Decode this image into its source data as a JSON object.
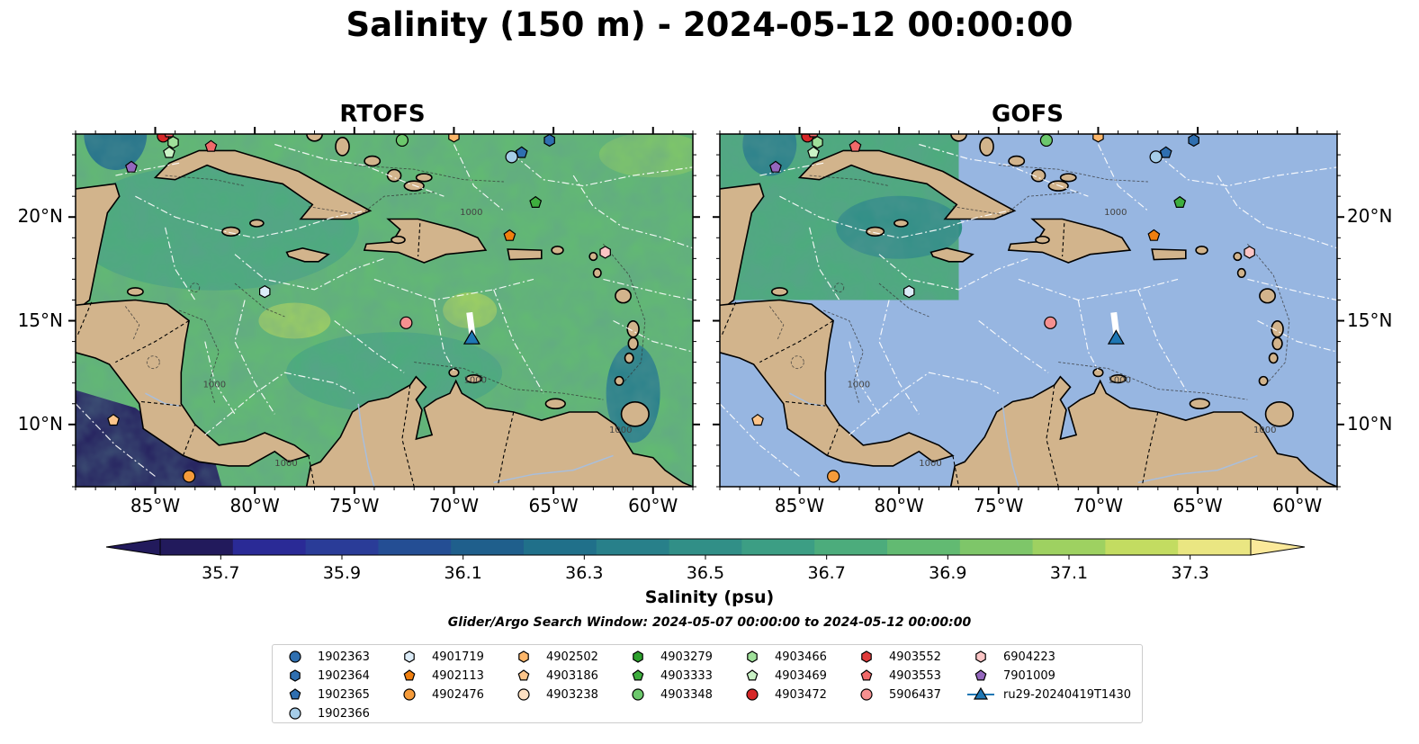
{
  "title": "Salinity (150 m) - 2024-05-12 00:00:00",
  "panels": [
    {
      "title": "RTOFS",
      "coverage": "full"
    },
    {
      "title": "GOFS",
      "coverage": "partial"
    }
  ],
  "map": {
    "lon_range": [
      -89.0,
      -58.0
    ],
    "lat_range": [
      7.0,
      24.0
    ],
    "lon_ticks": [
      {
        "value": -85,
        "label": "85°W"
      },
      {
        "value": -80,
        "label": "80°W"
      },
      {
        "value": -75,
        "label": "75°W"
      },
      {
        "value": -70,
        "label": "70°W"
      },
      {
        "value": -65,
        "label": "65°W"
      },
      {
        "value": -60,
        "label": "60°W"
      }
    ],
    "lat_ticks": [
      {
        "value": 20,
        "label": "20°N"
      },
      {
        "value": 15,
        "label": "15°N"
      },
      {
        "value": 10,
        "label": "10°N"
      }
    ],
    "contour_label": "1000",
    "colors": {
      "land": "#d2b48c",
      "ocean": "#97b6e1",
      "rivers": "#a9bedb",
      "border": "#000000"
    }
  },
  "colorbar": {
    "label": "Salinity (psu)",
    "vmin": 35.6,
    "vmax": 37.4,
    "ticks": [
      "35.7",
      "35.9",
      "36.1",
      "36.3",
      "36.5",
      "36.7",
      "36.9",
      "37.1",
      "37.3"
    ],
    "tick_values": [
      35.7,
      35.9,
      36.1,
      36.3,
      36.5,
      36.7,
      36.9,
      37.1,
      37.3
    ],
    "colors": [
      "#221a5c",
      "#2a2a96",
      "#2a3c98",
      "#244e94",
      "#1f5f8c",
      "#20708a",
      "#28808a",
      "#318f87",
      "#3c9e84",
      "#4cac7c",
      "#62ba72",
      "#7ec669",
      "#9ed161",
      "#c3dc61",
      "#eae682"
    ],
    "extend_low": "#221a5c",
    "extend_high": "#fbe99a"
  },
  "search_window": "Glider/Argo Search Window: 2024-05-07 00:00:00 to 2024-05-12 00:00:00",
  "legend": {
    "items": [
      {
        "label": "1902363",
        "marker": "circle",
        "color": "#2f6fb0"
      },
      {
        "label": "1902364",
        "marker": "hexagon",
        "color": "#2f6fb0"
      },
      {
        "label": "1902365",
        "marker": "pentagon",
        "color": "#2f6fb0"
      },
      {
        "label": "1902366",
        "marker": "circle",
        "color": "#a6cde8"
      },
      {
        "label": "4901719",
        "marker": "hexagon",
        "color": "#dcecf8"
      },
      {
        "label": "4902113",
        "marker": "pentagon",
        "color": "#f07f0f"
      },
      {
        "label": "4902476",
        "marker": "circle",
        "color": "#f59b3a"
      },
      {
        "label": "4902502",
        "marker": "hexagon",
        "color": "#fcb66a"
      },
      {
        "label": "4903186",
        "marker": "pentagon",
        "color": "#fdc58a"
      },
      {
        "label": "4903238",
        "marker": "circle",
        "color": "#fde0c2"
      },
      {
        "label": "4903279",
        "marker": "hexagon",
        "color": "#2ca02c"
      },
      {
        "label": "4903333",
        "marker": "pentagon",
        "color": "#3eae3e"
      },
      {
        "label": "4903348",
        "marker": "circle",
        "color": "#6cc86c"
      },
      {
        "label": "4903466",
        "marker": "hexagon",
        "color": "#9fe09a"
      },
      {
        "label": "4903469",
        "marker": "pentagon",
        "color": "#c9f2c5"
      },
      {
        "label": "4903472",
        "marker": "circle",
        "color": "#d62728"
      },
      {
        "label": "4903552",
        "marker": "hexagon",
        "color": "#e03b3b"
      },
      {
        "label": "4903553",
        "marker": "pentagon",
        "color": "#f06a6a"
      },
      {
        "label": "5906437",
        "marker": "circle",
        "color": "#f59090"
      },
      {
        "label": "6904223",
        "marker": "hexagon",
        "color": "#fbc5c5"
      },
      {
        "label": "7901009",
        "marker": "pentagon",
        "color": "#9467bd"
      },
      {
        "label": "ru29-20240419T1430",
        "marker": "triangle-line",
        "color": "#1f77b4"
      }
    ]
  },
  "floats": [
    {
      "id": "4903472",
      "lon": -84.6,
      "lat": 23.9
    },
    {
      "id": "4903553",
      "lon": -84.3,
      "lat": 24.1
    },
    {
      "id": "4903466",
      "lon": -84.1,
      "lat": 23.6
    },
    {
      "id": "4903469",
      "lon": -84.3,
      "lat": 23.1
    },
    {
      "id": "4903553",
      "lon": -82.2,
      "lat": 23.4
    },
    {
      "id": "7901009",
      "lon": -86.2,
      "lat": 22.4
    },
    {
      "id": "4903348",
      "lon": -72.6,
      "lat": 23.7
    },
    {
      "id": "4902502",
      "lon": -70.0,
      "lat": 23.9
    },
    {
      "id": "1902366",
      "lon": -67.1,
      "lat": 22.9
    },
    {
      "id": "1902365",
      "lon": -66.6,
      "lat": 23.1
    },
    {
      "id": "1902364",
      "lon": -65.2,
      "lat": 23.7
    },
    {
      "id": "4903333",
      "lon": -65.9,
      "lat": 20.7
    },
    {
      "id": "4902113",
      "lon": -67.2,
      "lat": 19.1
    },
    {
      "id": "6904223",
      "lon": -62.4,
      "lat": 18.3
    },
    {
      "id": "4901719",
      "lon": -79.5,
      "lat": 16.4
    },
    {
      "id": "5906437",
      "lon": -72.4,
      "lat": 14.9
    },
    {
      "id": "4903186",
      "lon": -87.1,
      "lat": 10.2
    },
    {
      "id": "4902476",
      "lon": -83.3,
      "lat": 7.5
    }
  ],
  "glider": {
    "id": "ru29-20240419T1430",
    "lon": -69.1,
    "lat": 14.1,
    "track_lat_end": 15.4
  }
}
